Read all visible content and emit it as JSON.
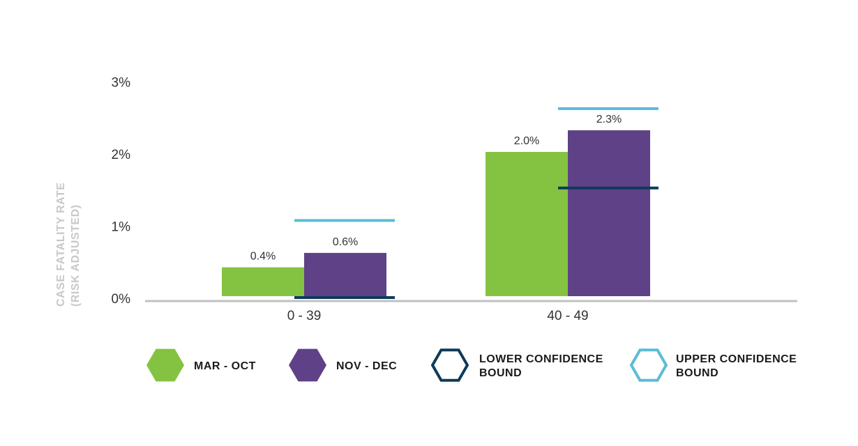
{
  "chart_data": {
    "type": "bar",
    "title": "",
    "xlabel": "",
    "ylabel_line1": "CASE FATALITY RATE",
    "ylabel_line2": "(RISK ADJUSTED)",
    "ylim": [
      0,
      3
    ],
    "yticks": [
      {
        "value": 0,
        "label": "0%"
      },
      {
        "value": 1,
        "label": "1%"
      },
      {
        "value": 2,
        "label": "2%"
      },
      {
        "value": 3,
        "label": "3%"
      }
    ],
    "categories": [
      "0 - 39",
      "40 - 49"
    ],
    "series": [
      {
        "name": "MAR - OCT",
        "color": "#84c341",
        "values": [
          0.4,
          2.0
        ],
        "labels": [
          "0.4%",
          "2.0%"
        ]
      },
      {
        "name": "NOV - DEC",
        "color": "#5f4187",
        "values": [
          0.6,
          2.3
        ],
        "labels": [
          "0.6%",
          "2.3%"
        ]
      }
    ],
    "confidence_bounds": {
      "series": "NOV - DEC",
      "lower": {
        "name": "LOWER CONFIDENCE BOUND",
        "color": "#0e3a5a",
        "values": [
          0.0,
          1.5
        ]
      },
      "upper": {
        "name": "UPPER CONFIDENCE BOUND",
        "color": "#5bbcd6",
        "values": [
          1.05,
          2.6
        ]
      }
    },
    "legend": {
      "placement": "bottom",
      "items": [
        {
          "line1": "MAR - OCT",
          "line2": "",
          "style": "filled",
          "color": "#84c341"
        },
        {
          "line1": "NOV - DEC",
          "line2": "",
          "style": "filled",
          "color": "#5f4187"
        },
        {
          "line1": "LOWER CONFIDENCE",
          "line2": "BOUND",
          "style": "outline",
          "color": "#0e3a5a"
        },
        {
          "line1": "UPPER CONFIDENCE",
          "line2": "BOUND",
          "style": "outline",
          "color": "#5bbcd6"
        }
      ]
    },
    "axis_color": "#c0c0c0",
    "grid": false
  }
}
